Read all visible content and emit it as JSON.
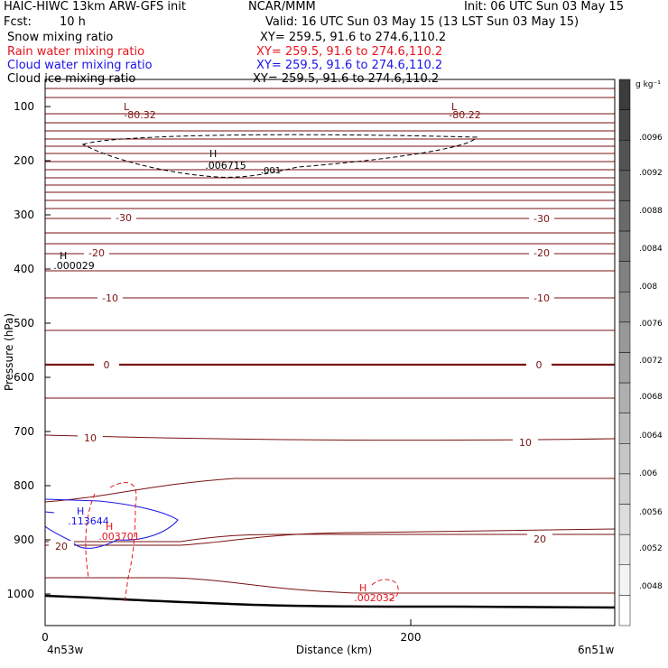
{
  "header": {
    "model_line": "HAIC-HIWC 13km ARW-GFS init",
    "org": "NCAR/MMM",
    "init": "Init: 06 UTC Sun 03 May 15",
    "fcst_label": "Fcst:",
    "fcst_value": "10 h",
    "valid": "Valid: 16 UTC Sun 03 May 15 (13 LST Sun 03 May 15)",
    "fields": [
      {
        "name": "Snow mixing ratio",
        "xy": "XY= 259.5, 91.6 to 274.6,110.2",
        "color": "#000000"
      },
      {
        "name": "Rain water mixing ratio",
        "xy": "XY= 259.5, 91.6 to 274.6,110.2",
        "color": "#e8141c"
      },
      {
        "name": "Cloud water mixing ratio",
        "xy": "XY= 259.5, 91.6 to 274.6,110.2",
        "color": "#1a14e8"
      },
      {
        "name": "Cloud ice mixing ratio",
        "xy": "XY= 259.5, 91.6 to 274.6,110.2",
        "color": "#000000"
      }
    ]
  },
  "chart_data": {
    "type": "contour_cross_section",
    "ylabel": "Pressure (hPa)",
    "xlabel": "Distance (km)",
    "x_ticks": [
      "0",
      "200"
    ],
    "y_ticks": [
      "100",
      "200",
      "300",
      "400",
      "500",
      "600",
      "700",
      "800",
      "900",
      "1000"
    ],
    "x_endpoints": {
      "left": "4n53w",
      "right": "6n51w"
    },
    "temperature_labels": [
      "-30",
      "-20",
      "-10",
      "0",
      "10",
      "20"
    ],
    "extrema": [
      {
        "type": "L",
        "value": "-80.32",
        "field": "temperature"
      },
      {
        "type": "L",
        "value": "-80.22",
        "field": "temperature"
      },
      {
        "type": "H",
        "value": ".006715",
        "field": "cloud ice"
      },
      {
        "type": "H",
        "value": ".000029",
        "field": "cloud ice"
      },
      {
        "type": "H",
        "value": ".113644",
        "field": "cloud water"
      },
      {
        "type": "H",
        "value": ".003701",
        "field": "rain water"
      },
      {
        "type": "H",
        "value": ".002032",
        "field": "rain water"
      }
    ],
    "contour_labels": [
      ".001"
    ],
    "colorbar": {
      "unit": "g kg⁻¹",
      "labels": [
        ".0096",
        ".0092",
        ".0088",
        ".0084",
        ".008",
        ".0076",
        ".0072",
        ".0068",
        ".0064",
        ".006",
        ".0056",
        ".0052",
        ".0048"
      ]
    },
    "colors": {
      "temperature": "#7a1010",
      "rain": "#e8141c",
      "cloud_water": "#1a14e8",
      "terrain": "#000000"
    }
  }
}
